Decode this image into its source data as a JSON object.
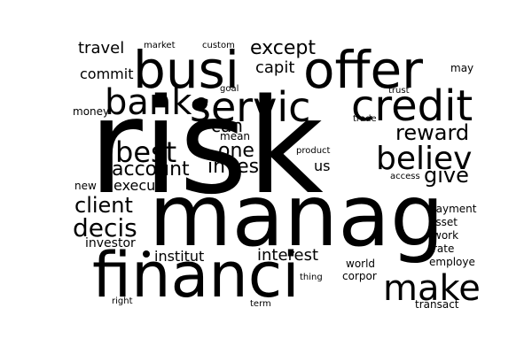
{
  "background_color": "#ffffff",
  "text_color": "#000000",
  "words": [
    "risk",
    "manag",
    "financi",
    "busi",
    "offer",
    "credit",
    "servic",
    "bank",
    "make",
    "believ",
    "best",
    "account",
    "reward",
    "give",
    "client",
    "decis",
    "invest",
    "one",
    "can",
    "except",
    "travel",
    "capit",
    "commit",
    "execut",
    "interest",
    "institut",
    "us",
    "mean",
    "investor",
    "payment",
    "asset",
    "employe",
    "corpor",
    "world",
    "money",
    "may",
    "market",
    "custom",
    "goal",
    "trust",
    "trade",
    "product",
    "access",
    "new",
    "work",
    "rate",
    "thing",
    "right",
    "term",
    "transact"
  ]
}
